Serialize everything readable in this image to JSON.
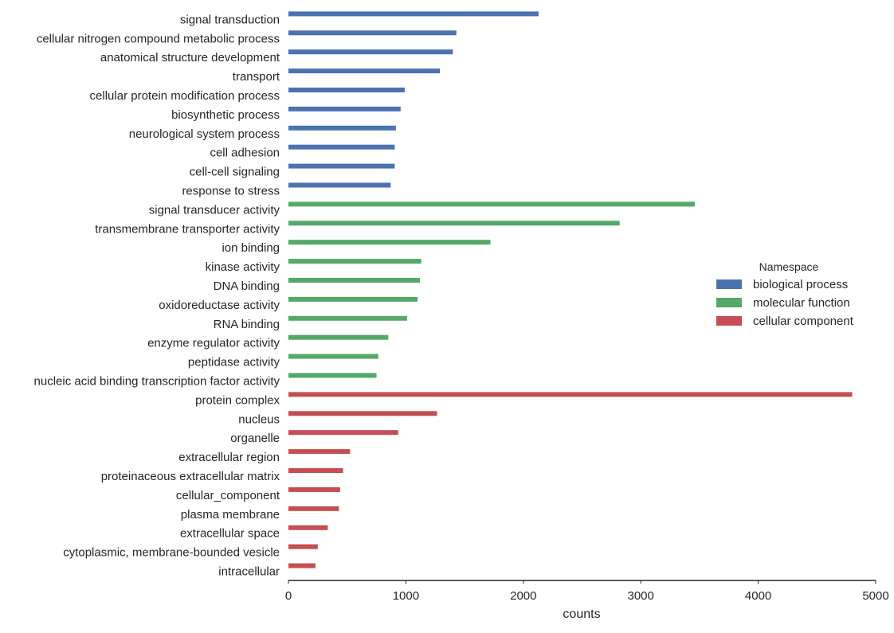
{
  "chart_data": {
    "type": "bar",
    "orientation": "horizontal",
    "title": "",
    "xlabel": "counts",
    "ylabel": "",
    "xlim": [
      0,
      5000
    ],
    "xticks": [
      0,
      1000,
      2000,
      3000,
      4000,
      5000
    ],
    "grid": false,
    "legend": {
      "title": "Namespace",
      "position": "center-right"
    },
    "series": [
      {
        "name": "biological process",
        "color": "#4c72b0",
        "categories": [
          "signal transduction",
          "cellular nitrogen compound metabolic process",
          "anatomical structure development",
          "transport",
          "cellular protein modification process",
          "biosynthetic process",
          "neurological system process",
          "cell adhesion",
          "cell-cell signaling",
          "response to stress"
        ],
        "values": [
          2130,
          1430,
          1400,
          1290,
          990,
          955,
          915,
          905,
          905,
          870
        ]
      },
      {
        "name": "molecular function",
        "color": "#55a868",
        "categories": [
          "signal transducer activity",
          "transmembrane transporter activity",
          "ion binding",
          "kinase activity",
          "DNA binding",
          "oxidoreductase activity",
          "RNA binding",
          "enzyme regulator activity",
          "peptidase activity",
          "nucleic acid binding transcription factor activity"
        ],
        "values": [
          3460,
          2820,
          1720,
          1130,
          1120,
          1100,
          1010,
          850,
          765,
          750
        ]
      },
      {
        "name": "cellular component",
        "color": "#c44e52",
        "categories": [
          "protein complex",
          "nucleus",
          "organelle",
          "extracellular region",
          "proteinaceous extracellular matrix",
          "cellular_component",
          "plasma membrane",
          "extracellular space",
          "cytoplasmic, membrane-bounded vesicle",
          "intracellular"
        ],
        "values": [
          4800,
          1265,
          935,
          525,
          465,
          440,
          430,
          335,
          250,
          230
        ]
      }
    ]
  }
}
